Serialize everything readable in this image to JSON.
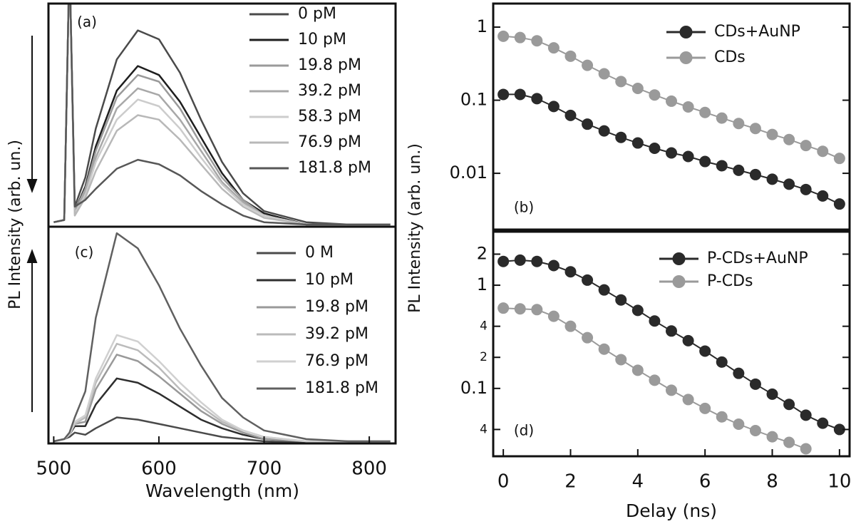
{
  "chart_data": [
    {
      "type": "line",
      "panel_label": "(a)",
      "y_label": "PL Intensity (arb. un.)",
      "x": [
        500,
        510,
        515,
        520,
        530,
        540,
        560,
        580,
        600,
        620,
        640,
        660,
        680,
        700,
        740,
        780,
        820
      ],
      "xlim": [
        495,
        825
      ],
      "ylim": [
        0,
        1
      ],
      "series": [
        {
          "name": "0 pM",
          "color": "#4a4a4a",
          "values": [
            0.02,
            0.03,
            1.2,
            0.09,
            0.22,
            0.44,
            0.75,
            0.88,
            0.84,
            0.69,
            0.48,
            0.29,
            0.15,
            0.07,
            0.02,
            0.01,
            0.01
          ]
        },
        {
          "name": "10 pM",
          "color": "#1e1e1e",
          "values": [
            0.02,
            0.03,
            1.2,
            0.07,
            0.18,
            0.36,
            0.61,
            0.72,
            0.68,
            0.56,
            0.4,
            0.24,
            0.12,
            0.06,
            0.01,
            0.01,
            0.01
          ]
        },
        {
          "name": "19.8 pM",
          "color": "#9a9a9a",
          "values": [
            0.02,
            0.03,
            1.2,
            0.07,
            0.17,
            0.34,
            0.58,
            0.68,
            0.65,
            0.53,
            0.37,
            0.22,
            0.12,
            0.05,
            0.01,
            0.01,
            0.01
          ]
        },
        {
          "name": "39.2 pM",
          "color": "#a8a8a8",
          "values": [
            0.02,
            0.03,
            1.2,
            0.06,
            0.16,
            0.31,
            0.53,
            0.62,
            0.59,
            0.48,
            0.34,
            0.2,
            0.11,
            0.05,
            0.01,
            0.01,
            0.01
          ]
        },
        {
          "name": "58.3 pM",
          "color": "#cccccc",
          "values": [
            0.02,
            0.03,
            1.2,
            0.06,
            0.14,
            0.29,
            0.48,
            0.57,
            0.54,
            0.44,
            0.31,
            0.19,
            0.1,
            0.05,
            0.01,
            0.01,
            0.01
          ]
        },
        {
          "name": "76.9 pM",
          "color": "#b8b8b8",
          "values": [
            0.02,
            0.03,
            1.2,
            0.05,
            0.13,
            0.25,
            0.43,
            0.5,
            0.48,
            0.39,
            0.28,
            0.17,
            0.09,
            0.04,
            0.01,
            0.01,
            0.01
          ]
        },
        {
          "name": "181.8 pM",
          "color": "#575757",
          "values": [
            0.02,
            0.03,
            1.2,
            0.09,
            0.12,
            0.17,
            0.26,
            0.3,
            0.28,
            0.23,
            0.16,
            0.1,
            0.05,
            0.02,
            0.01,
            0.01,
            0.01
          ]
        }
      ]
    },
    {
      "type": "line",
      "panel_label": "(b)",
      "y_label": "PL Intensity (arb. un.)",
      "log_y": true,
      "markers": true,
      "x": [
        0,
        0.5,
        1,
        1.5,
        2,
        2.5,
        3,
        3.5,
        4,
        4.5,
        5,
        5.5,
        6,
        6.5,
        7,
        7.5,
        8,
        8.5,
        9,
        9.5,
        10
      ],
      "xlim": [
        -0.3,
        10.3
      ],
      "ylim": [
        0.0017,
        2.1
      ],
      "yticks": [
        {
          "value": 0.01,
          "label": "0.01"
        },
        {
          "value": 0.1,
          "label": "0.1"
        },
        1
      ],
      "series": [
        {
          "name": "CDs+AuNP",
          "color": "#2a2a2a",
          "values": [
            0.12,
            0.12,
            0.105,
            0.082,
            0.062,
            0.047,
            0.038,
            0.031,
            0.026,
            0.022,
            0.019,
            0.017,
            0.0145,
            0.0127,
            0.011,
            0.0096,
            0.0083,
            0.0071,
            0.006,
            0.0049,
            0.0038
          ]
        },
        {
          "name": "CDs",
          "color": "#9a9a9a",
          "values": [
            0.75,
            0.72,
            0.65,
            0.52,
            0.4,
            0.3,
            0.23,
            0.18,
            0.145,
            0.118,
            0.097,
            0.081,
            0.068,
            0.057,
            0.048,
            0.041,
            0.034,
            0.029,
            0.024,
            0.02,
            0.016
          ]
        }
      ]
    },
    {
      "type": "line",
      "panel_label": "(c)",
      "x_label": "Wavelength (nm)",
      "x": [
        500,
        510,
        515,
        520,
        530,
        540,
        560,
        580,
        600,
        620,
        640,
        660,
        680,
        700,
        740,
        780,
        820
      ],
      "xlim": [
        495,
        825
      ],
      "ylim": [
        0,
        1
      ],
      "xticks": [
        500,
        600,
        700,
        800
      ],
      "series": [
        {
          "name": "0 M",
          "color": "#4a4a4a",
          "values": [
            0.01,
            0.02,
            0.03,
            0.05,
            0.04,
            0.07,
            0.12,
            0.11,
            0.09,
            0.07,
            0.05,
            0.03,
            0.02,
            0.01,
            0.005,
            0.005,
            0.005
          ]
        },
        {
          "name": "10 pM",
          "color": "#2e2e2e",
          "values": [
            0.01,
            0.02,
            0.04,
            0.08,
            0.08,
            0.18,
            0.3,
            0.28,
            0.23,
            0.17,
            0.11,
            0.07,
            0.04,
            0.02,
            0.01,
            0.01,
            0.01
          ]
        },
        {
          "name": "19.8 pM",
          "color": "#999999",
          "values": [
            0.01,
            0.02,
            0.04,
            0.09,
            0.1,
            0.25,
            0.41,
            0.38,
            0.31,
            0.23,
            0.15,
            0.09,
            0.05,
            0.02,
            0.01,
            0.01,
            0.01
          ]
        },
        {
          "name": "39.2 pM",
          "color": "#bbbbbb",
          "values": [
            0.01,
            0.02,
            0.04,
            0.09,
            0.12,
            0.28,
            0.46,
            0.43,
            0.35,
            0.25,
            0.17,
            0.1,
            0.06,
            0.03,
            0.01,
            0.01,
            0.01
          ]
        },
        {
          "name": "76.9 pM",
          "color": "#d0d0d0",
          "values": [
            0.01,
            0.02,
            0.04,
            0.1,
            0.13,
            0.3,
            0.5,
            0.47,
            0.38,
            0.28,
            0.19,
            0.11,
            0.06,
            0.03,
            0.01,
            0.01,
            0.01
          ]
        },
        {
          "name": "181.8 pM",
          "color": "#606060",
          "values": [
            0.01,
            0.02,
            0.05,
            0.12,
            0.24,
            0.58,
            0.97,
            0.9,
            0.73,
            0.53,
            0.36,
            0.21,
            0.12,
            0.06,
            0.02,
            0.01,
            0.01
          ]
        }
      ]
    },
    {
      "type": "line",
      "panel_label": "(d)",
      "x_label": "Delay (ns)",
      "log_y": true,
      "markers": true,
      "x": [
        0,
        0.5,
        1,
        1.5,
        2,
        2.5,
        3,
        3.5,
        4,
        4.5,
        5,
        5.5,
        6,
        6.5,
        7,
        7.5,
        8,
        8.5,
        9,
        9.5,
        10
      ],
      "xlim": [
        -0.3,
        10.3
      ],
      "ylim": [
        0.022,
        3.3
      ],
      "xticks": [
        0,
        2,
        4,
        6,
        8,
        10
      ],
      "yticks": [
        {
          "value": 0.04,
          "label": "4"
        },
        {
          "value": 0.1,
          "label": "0.1"
        },
        {
          "value": 0.2,
          "label": "2"
        },
        {
          "value": 0.4,
          "label": "4"
        },
        1,
        2
      ],
      "series": [
        {
          "name": "P-CDs+AuNP",
          "color": "#2a2a2a",
          "values": [
            1.7,
            1.75,
            1.7,
            1.55,
            1.35,
            1.12,
            0.9,
            0.72,
            0.57,
            0.45,
            0.36,
            0.29,
            0.23,
            0.18,
            0.14,
            0.11,
            0.088,
            0.07,
            0.055,
            0.046,
            0.04
          ]
        },
        {
          "name": "P-CDs",
          "color": "#9a9a9a",
          "values": [
            0.6,
            0.59,
            0.58,
            0.5,
            0.4,
            0.31,
            0.24,
            0.19,
            0.15,
            0.12,
            0.096,
            0.078,
            0.064,
            0.053,
            0.045,
            0.039,
            0.034,
            0.03,
            0.026,
            null,
            null
          ]
        }
      ]
    }
  ]
}
